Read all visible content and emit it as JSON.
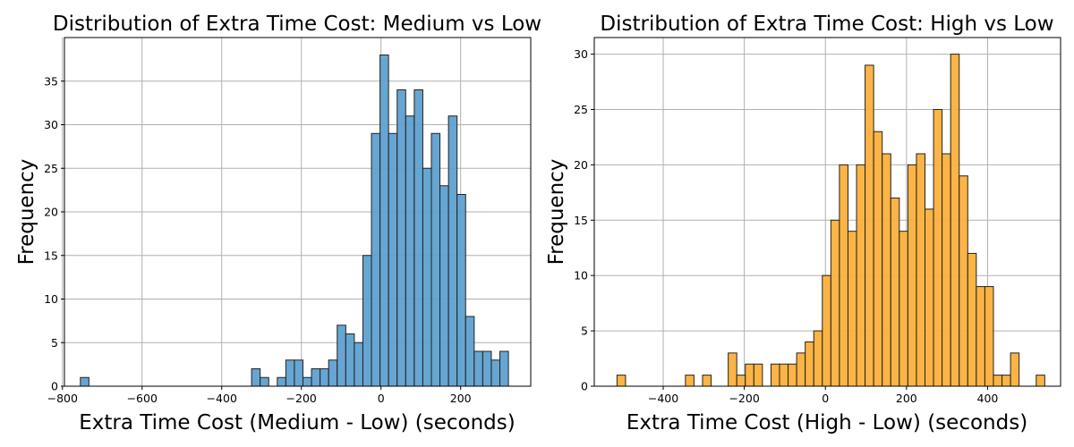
{
  "chart_data": [
    {
      "type": "histogram",
      "title": "Distribution of Extra Time Cost: Medium vs Low",
      "xlabel": "Extra Time Cost (Medium - Low) (seconds)",
      "ylabel": "Frequency",
      "xlim": [
        -795,
        376
      ],
      "ylim": [
        0,
        40
      ],
      "xticks": [
        -800,
        -600,
        -400,
        -200,
        0,
        200
      ],
      "yticks": [
        0,
        5,
        10,
        15,
        20,
        25,
        30,
        35
      ],
      "bin_width": 21.5,
      "color": "#5fa0d0",
      "bins": [
        {
          "start": -755.0,
          "count": 1
        },
        {
          "start": -325.0,
          "count": 2
        },
        {
          "start": -303.5,
          "count": 1
        },
        {
          "start": -260.5,
          "count": 1
        },
        {
          "start": -239.0,
          "count": 3
        },
        {
          "start": -217.5,
          "count": 3
        },
        {
          "start": -196.0,
          "count": 1
        },
        {
          "start": -174.5,
          "count": 2
        },
        {
          "start": -153.0,
          "count": 2
        },
        {
          "start": -131.5,
          "count": 3
        },
        {
          "start": -110.0,
          "count": 7
        },
        {
          "start": -88.5,
          "count": 6
        },
        {
          "start": -67.0,
          "count": 5
        },
        {
          "start": -45.5,
          "count": 15
        },
        {
          "start": -24.0,
          "count": 29
        },
        {
          "start": -2.5,
          "count": 38
        },
        {
          "start": 19.0,
          "count": 29
        },
        {
          "start": 40.5,
          "count": 34
        },
        {
          "start": 62.0,
          "count": 31
        },
        {
          "start": 83.5,
          "count": 34
        },
        {
          "start": 105.0,
          "count": 25
        },
        {
          "start": 126.5,
          "count": 29
        },
        {
          "start": 148.0,
          "count": 23
        },
        {
          "start": 169.5,
          "count": 31
        },
        {
          "start": 191.0,
          "count": 22
        },
        {
          "start": 212.5,
          "count": 8
        },
        {
          "start": 234.0,
          "count": 4
        },
        {
          "start": 255.5,
          "count": 4
        },
        {
          "start": 277.0,
          "count": 3
        },
        {
          "start": 298.5,
          "count": 4
        }
      ]
    },
    {
      "type": "histogram",
      "title": "Distribution of Extra Time Cost: High vs Low",
      "xlabel": "Extra Time Cost (High - Low) (seconds)",
      "ylabel": "Frequency",
      "xlim": [
        -570,
        580
      ],
      "ylim": [
        0,
        31.5
      ],
      "xticks": [
        -400,
        -200,
        0,
        200,
        400
      ],
      "yticks": [
        0,
        5,
        10,
        15,
        20,
        25,
        30
      ],
      "bin_width": 21.1,
      "color": "#fbb03b",
      "bins": [
        {
          "start": -514.0,
          "count": 1
        },
        {
          "start": -345.2,
          "count": 1
        },
        {
          "start": -303.0,
          "count": 1
        },
        {
          "start": -239.7,
          "count": 3
        },
        {
          "start": -218.6,
          "count": 1
        },
        {
          "start": -197.5,
          "count": 2
        },
        {
          "start": -176.4,
          "count": 2
        },
        {
          "start": -134.2,
          "count": 2
        },
        {
          "start": -113.1,
          "count": 2
        },
        {
          "start": -92.0,
          "count": 2
        },
        {
          "start": -70.9,
          "count": 3
        },
        {
          "start": -49.8,
          "count": 4
        },
        {
          "start": -28.7,
          "count": 5
        },
        {
          "start": -7.6,
          "count": 10
        },
        {
          "start": 13.5,
          "count": 15
        },
        {
          "start": 34.6,
          "count": 20
        },
        {
          "start": 55.7,
          "count": 14
        },
        {
          "start": 76.8,
          "count": 20
        },
        {
          "start": 97.9,
          "count": 29
        },
        {
          "start": 119.0,
          "count": 23
        },
        {
          "start": 140.1,
          "count": 21
        },
        {
          "start": 161.2,
          "count": 17
        },
        {
          "start": 182.3,
          "count": 14
        },
        {
          "start": 203.4,
          "count": 20
        },
        {
          "start": 224.5,
          "count": 21
        },
        {
          "start": 245.6,
          "count": 16
        },
        {
          "start": 266.7,
          "count": 25
        },
        {
          "start": 287.8,
          "count": 21
        },
        {
          "start": 308.9,
          "count": 30
        },
        {
          "start": 330.0,
          "count": 19
        },
        {
          "start": 351.1,
          "count": 12
        },
        {
          "start": 372.2,
          "count": 9
        },
        {
          "start": 393.3,
          "count": 9
        },
        {
          "start": 414.4,
          "count": 1
        },
        {
          "start": 435.5,
          "count": 1
        },
        {
          "start": 456.6,
          "count": 3
        },
        {
          "start": 519.9,
          "count": 1
        }
      ]
    }
  ]
}
